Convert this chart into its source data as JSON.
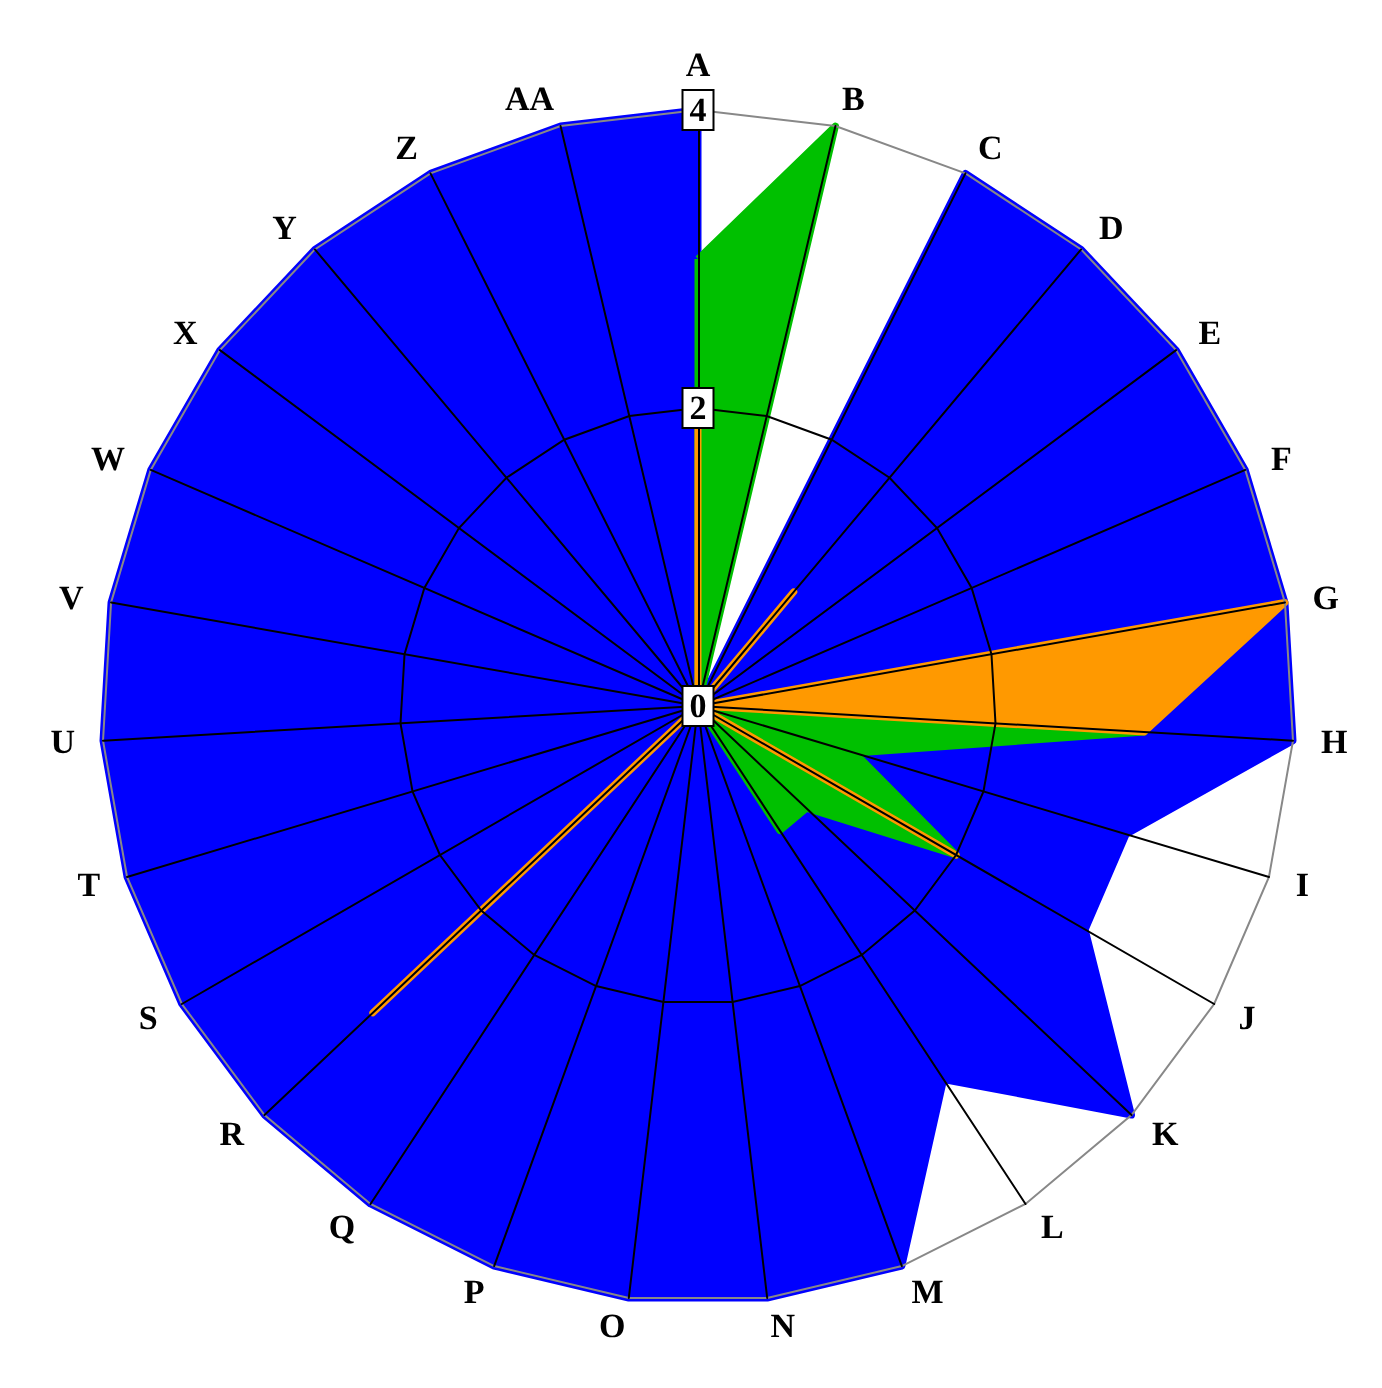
{
  "chart_data": {
    "type": "radar",
    "categories": [
      "A",
      "B",
      "C",
      "D",
      "E",
      "F",
      "G",
      "H",
      "I",
      "J",
      "K",
      "L",
      "M",
      "N",
      "O",
      "P",
      "Q",
      "R",
      "S",
      "T",
      "U",
      "V",
      "W",
      "X",
      "Y",
      "Z",
      "AA"
    ],
    "ylim": [
      0,
      4
    ],
    "yticks": [
      0,
      2,
      4
    ],
    "grid": true,
    "marker": "none",
    "series": [
      {
        "color": "#0000ff",
        "values": [
          4,
          0,
          4,
          4,
          4,
          4,
          4,
          4,
          3,
          3,
          4,
          3,
          4,
          4,
          4,
          4,
          4,
          4,
          4,
          4,
          4,
          4,
          4,
          4,
          4,
          4,
          4
        ]
      },
      {
        "color": "#00c000",
        "values": [
          3,
          4,
          0,
          0,
          0,
          0,
          0,
          3,
          1.1,
          2,
          1,
          1,
          0,
          0,
          0,
          0,
          0,
          0,
          0,
          0,
          0,
          0,
          0,
          0,
          0,
          0,
          0
        ]
      },
      {
        "color": "#ff9900",
        "values": [
          2,
          0,
          0,
          1,
          0,
          0,
          4,
          3,
          0,
          2,
          0,
          0,
          0,
          0,
          0,
          0,
          0,
          3,
          0,
          0,
          0,
          0,
          0,
          0,
          0,
          0,
          0
        ]
      }
    ]
  }
}
